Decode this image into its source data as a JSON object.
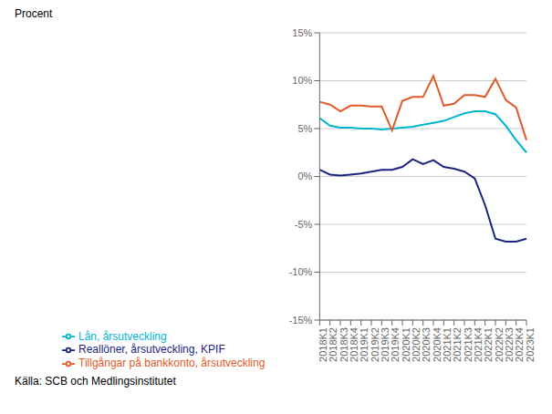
{
  "chart_data": {
    "type": "line",
    "ylabel": "Procent",
    "annotations": [
      "Källa: SCB och Medlingsinstitutet"
    ],
    "categories": [
      "2018K1",
      "2018K2",
      "2018K3",
      "2018K4",
      "2019K1",
      "2019K2",
      "2019K3",
      "2019K4",
      "2020K1",
      "2020K2",
      "2020K3",
      "2020K4",
      "2021K1",
      "2021K2",
      "2021K3",
      "2021K4",
      "2022K1",
      "2022K2",
      "2022K3",
      "2022K4",
      "2023K1"
    ],
    "series": [
      {
        "name": "Reallöner, årsutveckling, KPIF",
        "color": "#1a237e",
        "values": [
          0.7,
          0.2,
          0.1,
          0.2,
          0.3,
          0.5,
          0.7,
          0.7,
          1.0,
          1.8,
          1.3,
          1.7,
          1.0,
          0.8,
          0.5,
          -0.2,
          -3.0,
          -6.5,
          -6.8,
          -6.8,
          -6.5
        ]
      },
      {
        "name": "Lån, årsutveckling",
        "color": "#00b4d4",
        "values": [
          6.1,
          5.3,
          5.1,
          5.1,
          5.0,
          5.0,
          4.9,
          5.0,
          5.1,
          5.2,
          5.4,
          5.6,
          5.8,
          6.2,
          6.6,
          6.8,
          6.8,
          6.5,
          5.3,
          3.8,
          2.5
        ]
      },
      {
        "name": "Tillgångar på bankkonto, årsutveckling",
        "color": "#e05a28",
        "values": [
          7.8,
          7.5,
          6.8,
          7.4,
          7.4,
          7.3,
          7.3,
          4.8,
          7.9,
          8.3,
          8.3,
          10.5,
          7.4,
          7.6,
          8.5,
          8.5,
          8.3,
          10.2,
          8.0,
          7.2,
          3.8
        ]
      }
    ],
    "ylim": [
      -15,
      15
    ],
    "yticks": [
      {
        "value": -15,
        "label": "-15%"
      },
      {
        "value": -10,
        "label": "-10%"
      },
      {
        "value": -5,
        "label": "-5%"
      },
      {
        "value": 0,
        "label": "0%"
      },
      {
        "value": 5,
        "label": "5%"
      },
      {
        "value": 10,
        "label": "10%"
      },
      {
        "value": 15,
        "label": "15%"
      }
    ],
    "grid": true,
    "legend": "bottom"
  }
}
